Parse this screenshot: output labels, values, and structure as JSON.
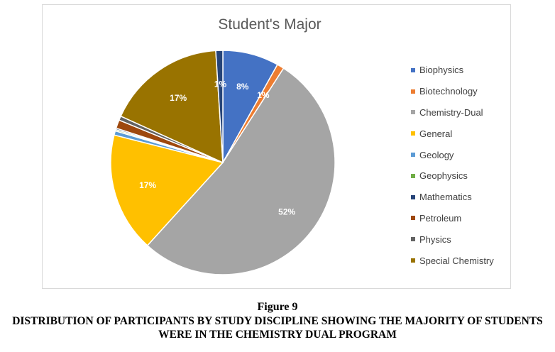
{
  "chart_data": {
    "type": "pie",
    "title": "Student's Major",
    "legend_position": "right",
    "slices": [
      {
        "label": "Biophysics",
        "value": 8,
        "display": "8%",
        "color": "#4472c4"
      },
      {
        "label": "Biotechnology",
        "value": 1,
        "display": "1%",
        "color": "#ed7d31"
      },
      {
        "label": "Chemistry-Dual",
        "value": 52,
        "display": "52%",
        "color": "#a5a5a5"
      },
      {
        "label": "General",
        "value": 17,
        "display": "17%",
        "color": "#ffc000"
      },
      {
        "label": "Geology",
        "value": 0.6,
        "display": "",
        "color": "#5b9bd5"
      },
      {
        "label": "Geophysics",
        "value": 0.2,
        "display": "",
        "color": "#70ad47"
      },
      {
        "label": "Mathematics",
        "value": 0.2,
        "display": "",
        "color": "#264478"
      },
      {
        "label": "Petroleum",
        "value": 1.2,
        "display": "",
        "color": "#9e480e"
      },
      {
        "label": "Physics",
        "value": 0.6,
        "display": "",
        "color": "#636363"
      },
      {
        "label": "Special Chemistry",
        "value": 17,
        "display": "17%",
        "color": "#997300"
      },
      {
        "label": "",
        "value": 1,
        "display": "1%",
        "color": "#264478"
      }
    ]
  },
  "caption": {
    "figure_label": "Figure 9",
    "text": "DISTRIBUTION OF PARTICIPANTS BY STUDY DISCIPLINE SHOWING THE MAJORITY OF STUDENTS WERE IN THE CHEMISTRY DUAL PROGRAM"
  }
}
